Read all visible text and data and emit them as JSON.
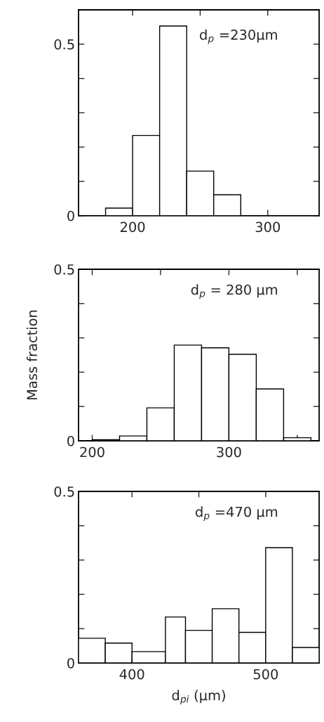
{
  "chart_data": [
    {
      "type": "histogram",
      "bins": [
        180,
        200,
        220,
        240,
        260,
        280
      ],
      "values": [
        0.022,
        0.234,
        0.553,
        0.13,
        0.061
      ],
      "color": "#ffffff",
      "xlim": [
        160,
        338
      ],
      "ylim": [
        0,
        0.6
      ],
      "xticks": [
        200,
        {
          "value": 250,
          "label": null
        },
        300
      ],
      "yticks": [
        0,
        {
          "value": 0.1,
          "label": null
        },
        {
          "value": 0.2,
          "label": null
        },
        {
          "value": 0.3,
          "label": null
        },
        {
          "value": 0.4,
          "label": null
        },
        0.5
      ],
      "annotations": [
        "d$_{p}$ =230μm"
      ],
      "grid": false
    },
    {
      "type": "histogram",
      "bins": [
        200,
        220,
        240,
        260,
        280,
        300,
        320,
        340,
        360
      ],
      "values": [
        0.003,
        0.014,
        0.096,
        0.279,
        0.271,
        0.252,
        0.151,
        0.009
      ],
      "color": "#ffffff",
      "xlim": [
        190,
        366
      ],
      "ylim": [
        0,
        0.5
      ],
      "xticks": [
        200,
        {
          "value": 250,
          "label": null
        },
        300,
        {
          "value": 350,
          "label": null
        }
      ],
      "yticks": [
        0,
        {
          "value": 0.1,
          "label": null
        },
        {
          "value": 0.2,
          "label": null
        },
        {
          "value": 0.3,
          "label": null
        },
        {
          "value": 0.4,
          "label": null
        },
        0.5
      ],
      "ylabel": "Mass fraction",
      "annotations": [
        "d$_{p}$ = 280 μm"
      ],
      "grid": false
    },
    {
      "type": "histogram",
      "bins": [
        360,
        380,
        400,
        425,
        440,
        460,
        480,
        500,
        520,
        540
      ],
      "values": [
        0.072,
        0.058,
        0.033,
        0.134,
        0.095,
        0.158,
        0.089,
        0.336,
        0.045
      ],
      "color": "#ffffff",
      "xlim": [
        360,
        540
      ],
      "ylim": [
        0,
        0.5
      ],
      "xticks": [
        400,
        {
          "value": 450,
          "label": null
        },
        500
      ],
      "yticks": [
        0,
        {
          "value": 0.1,
          "label": null
        },
        {
          "value": 0.2,
          "label": null
        },
        {
          "value": 0.3,
          "label": null
        },
        {
          "value": 0.4,
          "label": null
        },
        0.5
      ],
      "xlabel": "d$_{pi}$ (μm)",
      "annotations": [
        "d$_{p}$ =470 μm"
      ],
      "grid": false
    }
  ]
}
